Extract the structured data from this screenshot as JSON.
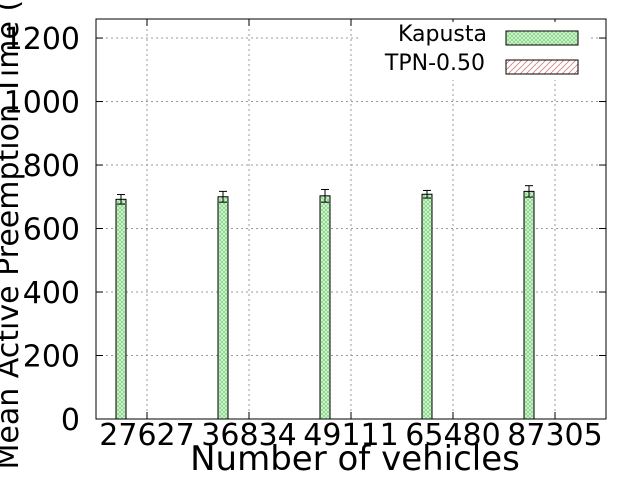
{
  "chart_data": {
    "type": "bar",
    "title": "",
    "xlabel": "Number of vehicles",
    "ylabel": "Mean Active Preemption Time (s)",
    "categories": [
      "27627",
      "36834",
      "49111",
      "65480",
      "87305"
    ],
    "ylim": [
      0,
      1260
    ],
    "yticks": [
      0,
      200,
      400,
      600,
      800,
      1000,
      1200
    ],
    "grid": true,
    "legend": "top-right",
    "series": [
      {
        "name": "Kapusta",
        "values": [
          692,
          700,
          703,
          708,
          717
        ],
        "errors": [
          15,
          17,
          20,
          12,
          18
        ],
        "color": "#2e8b57",
        "fill": "#d8f5d8",
        "pattern": "crosshatch"
      },
      {
        "name": "TPN-0.50",
        "values": [
          0,
          0,
          0,
          0,
          0
        ],
        "errors": [
          0,
          0,
          0,
          0,
          0
        ],
        "color": "#c06060",
        "fill": "#ffffff",
        "pattern": "diagonal"
      }
    ]
  }
}
